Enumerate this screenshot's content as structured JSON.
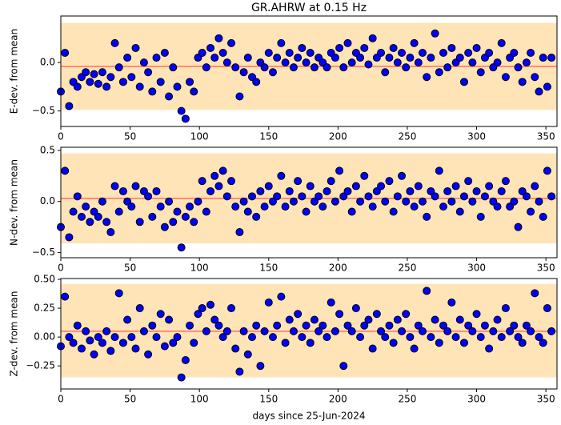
{
  "chart_data": [
    {
      "type": "scatter",
      "title": "GR.AHRW at 0.15 Hz",
      "ylabel": "E-dev. from mean",
      "x": [
        0,
        3,
        6,
        9,
        12,
        15,
        18,
        21,
        24,
        27,
        30,
        33,
        36,
        39,
        42,
        45,
        48,
        51,
        54,
        57,
        60,
        63,
        66,
        69,
        72,
        75,
        78,
        81,
        84,
        87,
        90,
        93,
        96,
        99,
        102,
        105,
        108,
        111,
        114,
        117,
        120,
        123,
        126,
        129,
        132,
        135,
        138,
        141,
        144,
        147,
        150,
        153,
        156,
        159,
        162,
        165,
        168,
        171,
        174,
        177,
        180,
        183,
        186,
        189,
        192,
        195,
        198,
        201,
        204,
        207,
        210,
        213,
        216,
        219,
        222,
        225,
        228,
        231,
        234,
        237,
        240,
        243,
        246,
        249,
        252,
        255,
        258,
        261,
        264,
        267,
        270,
        273,
        276,
        279,
        282,
        285,
        288,
        291,
        294,
        297,
        300,
        303,
        306,
        309,
        312,
        315,
        318,
        321,
        324,
        327,
        330,
        333,
        336,
        339,
        342,
        345,
        348,
        351,
        354
      ],
      "values": [
        -0.3,
        0.1,
        -0.45,
        -0.2,
        -0.25,
        -0.15,
        -0.1,
        -0.2,
        -0.12,
        -0.22,
        -0.1,
        -0.25,
        -0.15,
        0.2,
        -0.05,
        -0.2,
        0.05,
        -0.15,
        0.15,
        -0.25,
        0.0,
        -0.1,
        -0.3,
        0.05,
        -0.2,
        0.1,
        -0.35,
        -0.05,
        -0.25,
        -0.5,
        -0.58,
        -0.2,
        -0.3,
        0.05,
        0.1,
        -0.05,
        0.15,
        0.05,
        0.25,
        0.1,
        0.0,
        0.2,
        -0.05,
        -0.35,
        -0.1,
        0.05,
        -0.15,
        -0.2,
        0.0,
        -0.05,
        0.1,
        -0.1,
        0.05,
        0.2,
        0.0,
        0.1,
        -0.05,
        0.05,
        0.15,
        0.0,
        0.1,
        -0.05,
        0.05,
        0.0,
        -0.05,
        0.1,
        0.05,
        0.15,
        -0.05,
        0.2,
        0.0,
        0.1,
        0.05,
        0.15,
        -0.02,
        0.25,
        0.05,
        0.1,
        -0.1,
        0.05,
        0.15,
        0.0,
        0.1,
        -0.05,
        0.05,
        0.2,
        0.0,
        0.1,
        -0.15,
        0.05,
        0.3,
        -0.1,
        0.1,
        -0.05,
        0.15,
        0.0,
        0.05,
        -0.2,
        0.1,
        0.0,
        0.15,
        -0.1,
        0.05,
        0.1,
        -0.05,
        0.0,
        0.2,
        -0.15,
        0.05,
        0.1,
        -0.05,
        -0.2,
        0.0,
        0.1,
        -0.15,
        -0.3,
        0.05,
        -0.25,
        0.05
      ],
      "band": [
        -0.49,
        0.41
      ],
      "hline": -0.04,
      "xlim": [
        0,
        358
      ],
      "xticks": [
        0,
        50,
        100,
        150,
        200,
        250,
        300,
        350
      ],
      "ylim": [
        -0.66,
        0.48
      ],
      "yticks": [
        {
          "value": -0.5,
          "label": "−0.5"
        },
        {
          "value": 0.0,
          "label": "0.0"
        }
      ],
      "color": "#0000ff",
      "edgecolor": "#000000",
      "band_color": "#ffe4b8",
      "hline_color": "#ff6f61"
    },
    {
      "type": "scatter",
      "ylabel": "N-dev. from mean",
      "x": [
        0,
        3,
        6,
        9,
        12,
        15,
        18,
        21,
        24,
        27,
        30,
        33,
        36,
        39,
        42,
        45,
        48,
        51,
        54,
        57,
        60,
        63,
        66,
        69,
        72,
        75,
        78,
        81,
        84,
        87,
        90,
        93,
        96,
        99,
        102,
        105,
        108,
        111,
        114,
        117,
        120,
        123,
        126,
        129,
        132,
        135,
        138,
        141,
        144,
        147,
        150,
        153,
        156,
        159,
        162,
        165,
        168,
        171,
        174,
        177,
        180,
        183,
        186,
        189,
        192,
        195,
        198,
        201,
        204,
        207,
        210,
        213,
        216,
        219,
        222,
        225,
        228,
        231,
        234,
        237,
        240,
        243,
        246,
        249,
        252,
        255,
        258,
        261,
        264,
        267,
        270,
        273,
        276,
        279,
        282,
        285,
        288,
        291,
        294,
        297,
        300,
        303,
        306,
        309,
        312,
        315,
        318,
        321,
        324,
        327,
        330,
        333,
        336,
        339,
        342,
        345,
        348,
        351,
        354
      ],
      "values": [
        -0.25,
        0.3,
        -0.35,
        -0.1,
        0.05,
        -0.15,
        -0.05,
        -0.2,
        -0.1,
        -0.15,
        0.0,
        -0.2,
        -0.3,
        0.15,
        -0.1,
        0.1,
        0.0,
        -0.05,
        0.15,
        -0.2,
        0.1,
        0.05,
        -0.15,
        0.1,
        -0.05,
        -0.25,
        0.0,
        -0.2,
        -0.1,
        -0.45,
        -0.15,
        -0.05,
        -0.2,
        0.0,
        0.2,
        -0.1,
        0.1,
        0.25,
        0.15,
        0.3,
        0.05,
        0.2,
        -0.05,
        -0.3,
        0.0,
        -0.1,
        0.05,
        -0.15,
        0.1,
        -0.05,
        0.15,
        0.0,
        0.05,
        0.25,
        -0.05,
        0.1,
        0.0,
        0.2,
        0.05,
        -0.1,
        0.15,
        0.0,
        0.05,
        -0.05,
        0.1,
        0.2,
        0.0,
        0.3,
        0.05,
        0.1,
        -0.1,
        0.15,
        0.0,
        0.25,
        0.05,
        -0.05,
        0.1,
        0.15,
        0.0,
        0.2,
        -0.1,
        0.05,
        0.25,
        0.0,
        0.1,
        -0.05,
        0.15,
        0.0,
        -0.15,
        0.1,
        0.05,
        0.3,
        -0.05,
        0.1,
        0.0,
        0.15,
        -0.1,
        0.05,
        0.2,
        0.0,
        0.1,
        -0.15,
        0.05,
        0.15,
        0.0,
        -0.05,
        0.1,
        0.2,
        -0.05,
        0.0,
        -0.25,
        0.1,
        0.05,
        -0.1,
        0.15,
        0.0,
        -0.15,
        0.3,
        0.05
      ],
      "band": [
        -0.41,
        0.47
      ],
      "hline": 0.03,
      "xlim": [
        0,
        358
      ],
      "xticks": [
        0,
        50,
        100,
        150,
        200,
        250,
        300,
        350
      ],
      "ylim": [
        -0.55,
        0.53
      ],
      "yticks": [
        {
          "value": -0.5,
          "label": "−0.5"
        },
        {
          "value": 0.0,
          "label": "0.0"
        },
        0.5
      ],
      "color": "#0000ff",
      "edgecolor": "#000000",
      "band_color": "#ffe4b8",
      "hline_color": "#ff6f61"
    },
    {
      "type": "scatter",
      "ylabel": "Z-dev. from mean",
      "xlabel": "days since 25-Jun-2024",
      "x": [
        0,
        3,
        6,
        9,
        12,
        15,
        18,
        21,
        24,
        27,
        30,
        33,
        36,
        39,
        42,
        45,
        48,
        51,
        54,
        57,
        60,
        63,
        66,
        69,
        72,
        75,
        78,
        81,
        84,
        87,
        90,
        93,
        96,
        99,
        102,
        105,
        108,
        111,
        114,
        117,
        120,
        123,
        126,
        129,
        132,
        135,
        138,
        141,
        144,
        147,
        150,
        153,
        156,
        159,
        162,
        165,
        168,
        171,
        174,
        177,
        180,
        183,
        186,
        189,
        192,
        195,
        198,
        201,
        204,
        207,
        210,
        213,
        216,
        219,
        222,
        225,
        228,
        231,
        234,
        237,
        240,
        243,
        246,
        249,
        252,
        255,
        258,
        261,
        264,
        267,
        270,
        273,
        276,
        279,
        282,
        285,
        288,
        291,
        294,
        297,
        300,
        303,
        306,
        309,
        312,
        315,
        318,
        321,
        324,
        327,
        330,
        333,
        336,
        339,
        342,
        345,
        348,
        351,
        354
      ],
      "values": [
        -0.08,
        0.35,
        0.0,
        -0.05,
        0.1,
        -0.1,
        0.05,
        -0.03,
        -0.15,
        0.0,
        -0.05,
        0.05,
        -0.12,
        0.0,
        0.38,
        -0.05,
        0.15,
        0.0,
        -0.1,
        0.25,
        0.05,
        -0.15,
        0.1,
        0.0,
        0.2,
        -0.08,
        0.15,
        -0.05,
        0.0,
        -0.35,
        -0.2,
        0.1,
        -0.05,
        0.2,
        0.25,
        0.05,
        0.28,
        0.15,
        0.1,
        0.0,
        0.05,
        0.25,
        -0.1,
        -0.3,
        0.05,
        -0.15,
        0.0,
        0.1,
        -0.25,
        0.05,
        0.3,
        0.0,
        0.1,
        0.35,
        -0.05,
        0.15,
        0.05,
        0.2,
        0.0,
        0.1,
        -0.05,
        0.15,
        0.05,
        0.1,
        0.0,
        0.3,
        0.05,
        0.2,
        -0.25,
        0.1,
        0.05,
        0.25,
        0.0,
        0.1,
        0.15,
        -0.1,
        0.2,
        0.05,
        0.0,
        0.1,
        -0.05,
        0.15,
        0.05,
        0.2,
        0.0,
        -0.1,
        0.1,
        0.05,
        0.4,
        0.0,
        0.15,
        -0.05,
        0.1,
        0.05,
        0.3,
        0.0,
        0.15,
        -0.05,
        0.1,
        0.05,
        0.2,
        0.0,
        0.1,
        -0.1,
        0.05,
        0.15,
        0.0,
        0.25,
        0.05,
        0.1,
        0.0,
        -0.05,
        0.1,
        0.05,
        0.38,
        0.0,
        -0.05,
        0.25,
        0.05
      ],
      "band": [
        -0.35,
        0.46
      ],
      "hline": 0.05,
      "xlim": [
        0,
        358
      ],
      "xticks": [
        0,
        50,
        100,
        150,
        200,
        250,
        300,
        350
      ],
      "ylim": [
        -0.45,
        0.507
      ],
      "yticks": [
        {
          "value": -0.25,
          "label": "−0.25"
        },
        {
          "value": 0.0,
          "label": "0.00"
        },
        {
          "value": 0.25,
          "label": "0.25"
        },
        {
          "value": 0.5,
          "label": "0.50"
        }
      ],
      "color": "#0000ff",
      "edgecolor": "#000000",
      "band_color": "#ffe4b8",
      "hline_color": "#ff6f61"
    }
  ]
}
